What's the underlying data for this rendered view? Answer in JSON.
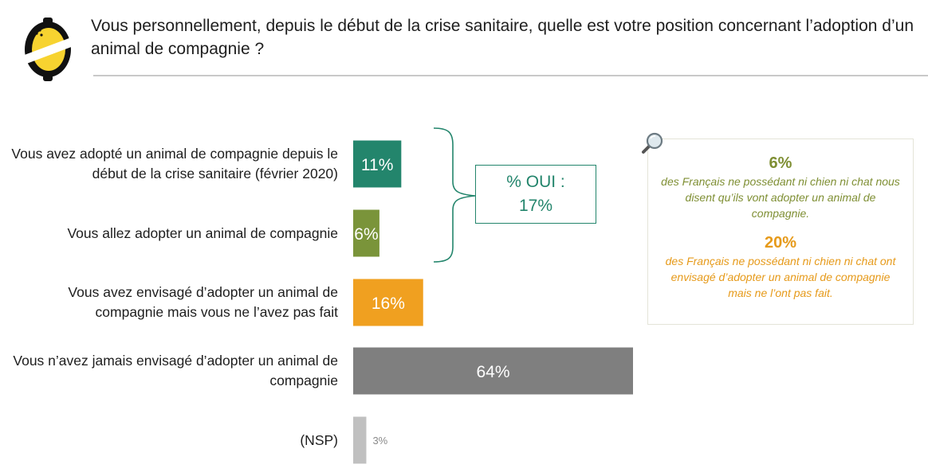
{
  "header": {
    "question": "Vous personnellement, depuis le début de la crise sanitaire, quelle est votre position concernant l’adoption d’un animal de compagnie ?"
  },
  "chart_data": {
    "type": "bar",
    "orientation": "horizontal",
    "categories": [
      "Vous avez adopté un animal de compagnie depuis le début de la crise sanitaire (février 2020)",
      "Vous allez adopter un animal de compagnie",
      "Vous avez envisagé d’adopter un animal de compagnie mais vous ne l’avez pas fait",
      "Vous n’avez jamais envisagé d’adopter un animal de compagnie",
      "(NSP)"
    ],
    "values": [
      11,
      6,
      16,
      64,
      3
    ],
    "value_labels": [
      "11%",
      "6%",
      "16%",
      "64%",
      "3%"
    ],
    "colors": [
      "#23856c",
      "#7a943a",
      "#f0a020",
      "#7f7f7f",
      "#c0c0c0"
    ],
    "unit": "%",
    "grid": false
  },
  "summary": {
    "label": "% OUI :",
    "value": "17%"
  },
  "info": {
    "stat1": "6%",
    "text1": "des Français ne possédant ni chien ni chat nous disent qu’ils vont adopter un animal de compagnie.",
    "stat2": "20%",
    "text2": "des Français ne possédant ni chien ni chat ont envisagé d’adopter un animal de compagnie mais ne l’ont pas fait.",
    "color1": "#7f8f34",
    "color2": "#e69a1a"
  },
  "icons": {
    "logo": "lemon-logo-icon",
    "magnifier": "magnifier-icon"
  }
}
